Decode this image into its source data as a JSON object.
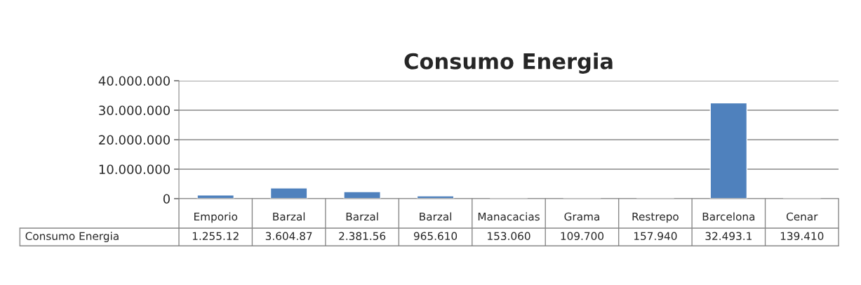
{
  "chart_data": {
    "type": "bar",
    "title": "Consumo Energia",
    "categories": [
      "Emporio",
      "Barzal",
      "Barzal",
      "Barzal",
      "Manacacias",
      "Grama",
      "Restrepo",
      "Barcelona",
      "Cenar"
    ],
    "series": [
      {
        "name": "Consumo Energia",
        "color": "#4f81bd",
        "values": [
          1255120,
          3604870,
          2381560,
          965610,
          153060,
          109700,
          157940,
          32493100,
          139410
        ],
        "value_labels": [
          "1.255.12",
          "3.604.87",
          "2.381.56",
          "965.610",
          "153.060",
          "109.700",
          "157.940",
          "32.493.1",
          "139.410"
        ]
      }
    ],
    "ylim": [
      0,
      40000000
    ],
    "yticks": [
      {
        "value": 0,
        "label": "0"
      },
      {
        "value": 10000000,
        "label": "10.000.000"
      },
      {
        "value": 20000000,
        "label": "20.000.000"
      },
      {
        "value": 30000000,
        "label": "30.000.000"
      },
      {
        "value": 40000000,
        "label": "40.000.000"
      }
    ],
    "grid": "y",
    "legend": false
  }
}
